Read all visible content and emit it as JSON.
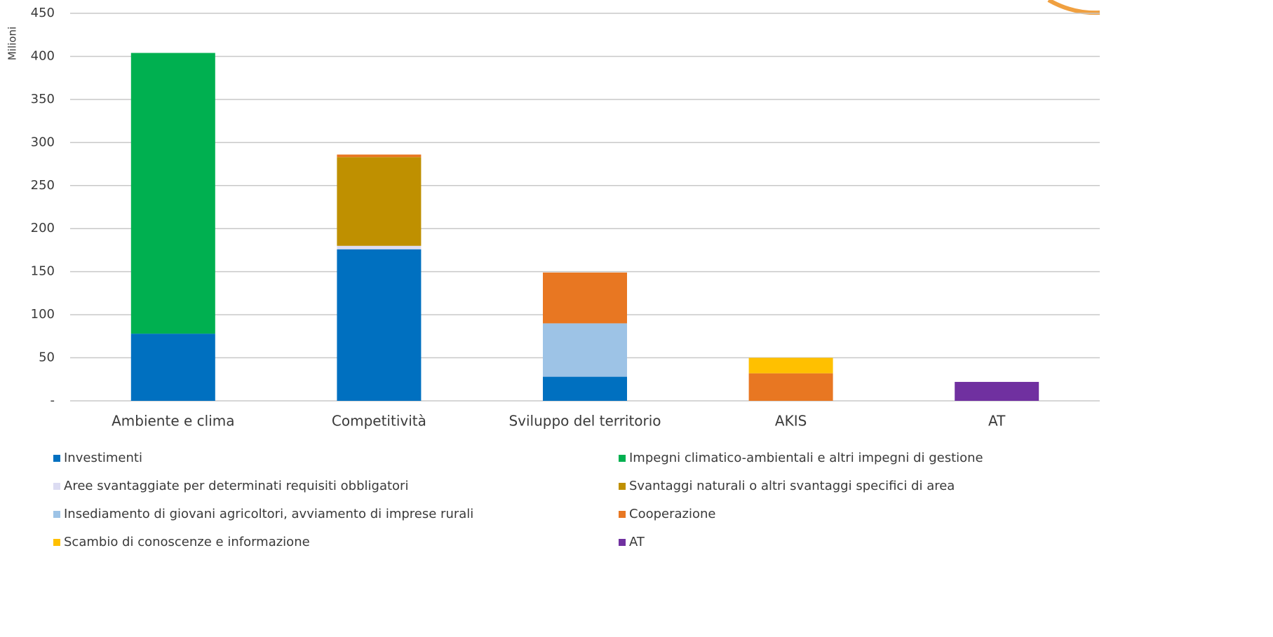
{
  "chart_data": {
    "type": "stacked-bar",
    "y_label": "Milioni",
    "categories": [
      "Ambiente e clima",
      "Competitività",
      "Sviluppo del territorio",
      "AKIS",
      "AT"
    ],
    "series": [
      {
        "name": "Investimenti",
        "color": "#0070c0",
        "values": [
          78,
          176,
          28,
          null,
          null
        ]
      },
      {
        "name": "Impegni climatico-ambientali e altri impegni di gestione",
        "color": "#00b050",
        "values": [
          326,
          null,
          null,
          null,
          null
        ]
      },
      {
        "name": "Aree svantaggiate per determinati requisiti obbligatori",
        "color": "#dcdcf2",
        "values": [
          null,
          4,
          null,
          null,
          null
        ]
      },
      {
        "name": "Svantaggi naturali o altri svantaggi specifici di area",
        "color": "#bf9000",
        "values": [
          null,
          103,
          null,
          null,
          null
        ]
      },
      {
        "name": "Insediamento di giovani agricoltori, avviamento di imprese rurali",
        "color": "#9dc3e6",
        "values": [
          null,
          null,
          62,
          null,
          null
        ]
      },
      {
        "name": "Cooperazione",
        "color": "#e87722",
        "values": [
          null,
          3,
          59,
          32,
          null
        ]
      },
      {
        "name": "Scambio di conoscenze e informazione",
        "color": "#ffc000",
        "values": [
          null,
          null,
          null,
          18,
          null
        ]
      },
      {
        "name": "AT",
        "color": "#7030a0",
        "values": [
          null,
          null,
          null,
          null,
          22
        ]
      }
    ],
    "ylim": [
      0,
      450
    ],
    "yticks": [
      {
        "value": 0,
        "label": "-"
      },
      50,
      100,
      150,
      200,
      250,
      300,
      350,
      400,
      450
    ],
    "grid": true
  }
}
